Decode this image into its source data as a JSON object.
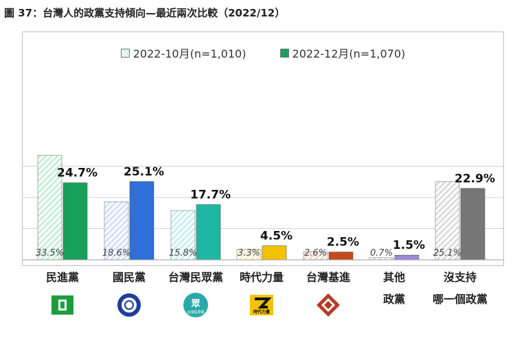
{
  "figure_title": "圖 37：台灣人的政黨支持傾向—最近兩次比較（2022/12）",
  "legend": [
    {
      "label": "2022-10月(n=1,010)",
      "color": "#c6efd7",
      "pattern": "hatch"
    },
    {
      "label": "2022-12月(n=1,070)",
      "color": "#17a05a",
      "pattern": "solid"
    }
  ],
  "parties": [
    {
      "name": "民進黨",
      "logo_icon": "dpp-logo-icon",
      "logo_color": "#1c9e3e"
    },
    {
      "name": "國民黨",
      "logo_icon": "kmt-logo-icon",
      "logo_color": "#1c3f9e"
    },
    {
      "name": "台灣民眾黨",
      "logo_icon": "tpp-logo-icon",
      "logo_color": "#2aa8a8",
      "logo_text": "眾",
      "logo_caption": "台灣民眾黨"
    },
    {
      "name": "時代力量",
      "logo_icon": "npp-logo-icon",
      "logo_color": "#f2c300",
      "logo_text": "時代力量"
    },
    {
      "name": "台灣基進",
      "logo_icon": "tsp-logo-icon",
      "logo_color": "#b63a2a"
    },
    {
      "name": "其他\n政黨",
      "lines": [
        "其他",
        "政黨"
      ]
    },
    {
      "name": "沒支持\n哪一個政黨",
      "lines": [
        "沒支持",
        "哪一個政黨"
      ]
    }
  ],
  "chart_data": {
    "type": "bar",
    "categories": [
      "民進黨",
      "國民黨",
      "台灣民眾黨",
      "時代力量",
      "台灣基進",
      "其他政黨",
      "沒支持哪一個政黨"
    ],
    "series": [
      {
        "name": "2022-10月(n=1,010)",
        "values": [
          33.5,
          18.6,
          15.8,
          3.3,
          2.6,
          0.7,
          25.1
        ],
        "labels": [
          "33.5%",
          "18.6%",
          "15.8%",
          "3.3%",
          "2.6%",
          "0.7%",
          "25.1%"
        ],
        "colors": [
          "#c6efd7",
          "#d3dff6",
          "#c9eef0",
          "#fbefbd",
          "#f7d6c8",
          "#e6dcf5",
          "#dcdcdc"
        ],
        "pattern": "hatch"
      },
      {
        "name": "2022-12月(n=1,070)",
        "values": [
          24.7,
          25.1,
          17.7,
          4.5,
          2.5,
          1.5,
          22.9
        ],
        "labels": [
          "24.7%",
          "25.1%",
          "17.7%",
          "4.5%",
          "2.5%",
          "1.5%",
          "22.9%"
        ],
        "colors": [
          "#17a05a",
          "#2f6fd8",
          "#1fb7a4",
          "#f2c200",
          "#c5491e",
          "#9b8ad6",
          "#777777"
        ],
        "pattern": "solid"
      }
    ],
    "ylim": [
      0,
      40
    ],
    "grid": true,
    "legend": "top-center"
  }
}
